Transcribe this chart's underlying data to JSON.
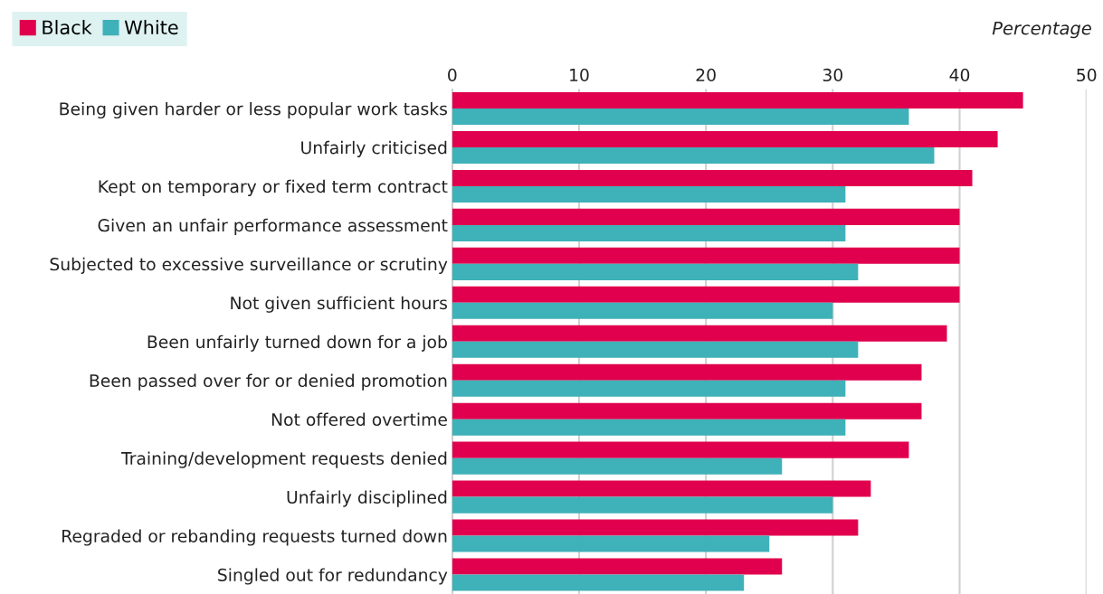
{
  "chart_data": {
    "type": "bar",
    "orientation": "horizontal",
    "xlabel": "Percentage",
    "categories": [
      "Being given harder or less popular work tasks",
      "Unfairly criticised",
      "Kept on temporary or fixed term contract",
      "Given an unfair performance assessment",
      "Subjected to excessive surveillance or scrutiny",
      "Not given sufficient hours",
      "Been unfairly turned down for a job",
      "Been passed over for or denied promotion",
      "Not offered overtime",
      "Training/development requests denied",
      "Unfairly disciplined",
      "Regraded or rebanding requests turned down",
      "Singled out for redundancy"
    ],
    "series": [
      {
        "name": "Black",
        "color": "#e0004d",
        "values": [
          45,
          43,
          41,
          40,
          40,
          40,
          39,
          37,
          37,
          36,
          33,
          32,
          26
        ]
      },
      {
        "name": "White",
        "color": "#3fb1b8",
        "values": [
          36,
          38,
          31,
          31,
          32,
          30,
          32,
          31,
          31,
          26,
          30,
          25,
          23
        ]
      }
    ],
    "xlim": [
      0,
      50
    ],
    "xticks": [
      0,
      10,
      20,
      30,
      40,
      50
    ],
    "grid": "x",
    "legend": "top left"
  }
}
